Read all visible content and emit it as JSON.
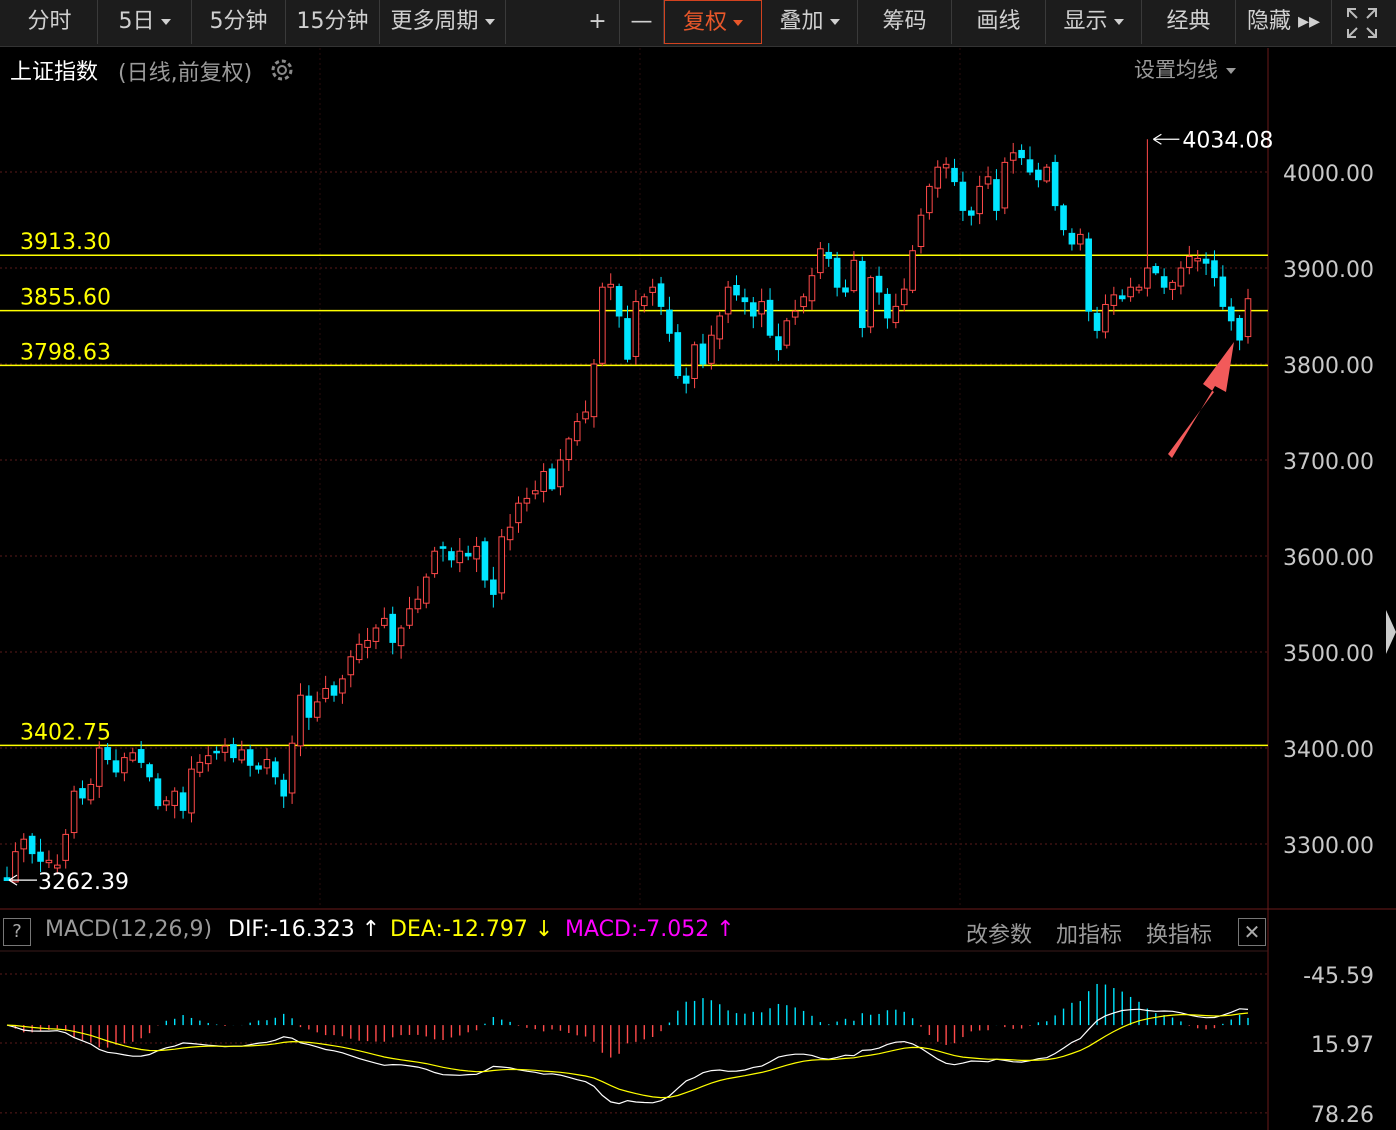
{
  "toolbar": {
    "items": [
      {
        "label": "分时",
        "dropdown": false,
        "active": false
      },
      {
        "label": "5日",
        "dropdown": true,
        "active": false
      },
      {
        "label": "5分钟",
        "dropdown": false,
        "active": false
      },
      {
        "label": "15分钟",
        "dropdown": false,
        "active": false
      },
      {
        "label": "更多周期",
        "dropdown": true,
        "active": false
      },
      {
        "label": "+",
        "dropdown": false,
        "active": false
      },
      {
        "label": "—",
        "dropdown": false,
        "active": false
      },
      {
        "label": "复权",
        "dropdown": true,
        "active": true
      },
      {
        "label": "叠加",
        "dropdown": true,
        "active": false
      },
      {
        "label": "筹码",
        "dropdown": false,
        "active": false
      },
      {
        "label": "画线",
        "dropdown": false,
        "active": false
      },
      {
        "label": "显示",
        "dropdown": true,
        "active": false
      },
      {
        "label": "经典",
        "dropdown": false,
        "active": false
      },
      {
        "label": "隐藏 ▸▸",
        "dropdown": false,
        "active": false
      }
    ],
    "fullscreen_icon": "expand-icon"
  },
  "chart_header": {
    "title": "上证指数",
    "subtitle": "(日线,前复权)",
    "settings_icon": "gear-icon",
    "ma_settings": "设置均线"
  },
  "chart_data": [
    {
      "type": "candlestick",
      "ylim": [
        3230,
        4100
      ],
      "y_ticks": [
        "3300.00",
        "3400.00",
        "3500.00",
        "3600.00",
        "3700.00",
        "3800.00",
        "3900.00",
        "4000.00"
      ],
      "high_label": "4034.08",
      "low_label": "3262.39",
      "reference_lines": [
        {
          "value": 3913.3,
          "label": "3913.30"
        },
        {
          "value": 3855.6,
          "label": "3855.60"
        },
        {
          "value": 3798.63,
          "label": "3798.63"
        },
        {
          "value": 3402.75,
          "label": "3402.75"
        }
      ],
      "colors": {
        "up": "#ff4a4a",
        "down": "#00e5ff",
        "ref_line": "#ffff00",
        "grid": "#5a1a1a"
      },
      "closes": [
        3262,
        3292,
        3305,
        3290,
        3282,
        3283,
        3278,
        3310,
        3355,
        3348,
        3362,
        3400,
        3388,
        3375,
        3390,
        3395,
        3385,
        3370,
        3340,
        3345,
        3355,
        3335,
        3378,
        3385,
        3392,
        3395,
        3402,
        3390,
        3398,
        3382,
        3378,
        3388,
        3370,
        3350,
        3405,
        3455,
        3432,
        3448,
        3462,
        3455,
        3472,
        3495,
        3508,
        3512,
        3525,
        3535,
        3510,
        3525,
        3545,
        3555,
        3578,
        3605,
        3608,
        3596,
        3605,
        3600,
        3610,
        3575,
        3560,
        3620,
        3630,
        3655,
        3660,
        3668,
        3688,
        3670,
        3700,
        3722,
        3740,
        3750,
        3800,
        3880,
        3883,
        3850,
        3805,
        3865,
        3870,
        3880,
        3860,
        3832,
        3788,
        3780,
        3820,
        3800,
        3830,
        3850,
        3880,
        3872,
        3865,
        3850,
        3865,
        3830,
        3815,
        3845,
        3855,
        3870,
        3892,
        3920,
        3910,
        3880,
        3875,
        3908,
        3838,
        3890,
        3875,
        3848,
        3860,
        3878,
        3918,
        3955,
        3985,
        4005,
        4008,
        3990,
        3960,
        3955,
        3985,
        3995,
        3960,
        4010,
        4020,
        4015,
        4000,
        3992,
        4005,
        3965,
        3940,
        3925,
        3935,
        3855,
        3835,
        3862,
        3872,
        3868,
        3880,
        3880,
        3900,
        3895,
        3880,
        3885,
        3900,
        3912,
        3910,
        3905,
        3890,
        3860,
        3845,
        3825,
        3868
      ]
    },
    {
      "type": "macd",
      "title": "MACD(12,26,9)",
      "dif_label": "DIF:-16.323",
      "dif_arrow": "↑",
      "dea_label": "DEA:-12.797",
      "dea_arrow": "↓",
      "macd_label": "MACD:-7.052",
      "macd_arrow": "↑",
      "y_ticks": [
        "78.26",
        "15.97",
        "-45.59"
      ],
      "ylim": [
        -45.59,
        78.26
      ],
      "colors": {
        "dif": "#ffffff",
        "dea": "#ffff00",
        "macd": "#ff00ff"
      }
    }
  ],
  "macd_buttons": [
    "改参数",
    "加指标",
    "换指标"
  ],
  "close_label": "✕",
  "help_label": "?"
}
